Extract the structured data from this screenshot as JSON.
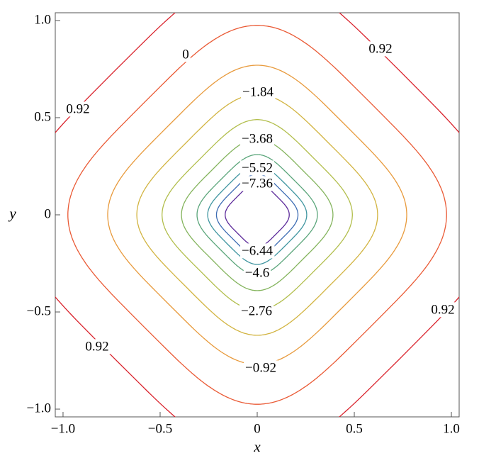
{
  "chart_data": {
    "type": "contour",
    "xlabel": "x",
    "ylabel": "y",
    "xlim": [
      -1.04,
      1.04
    ],
    "ylim": [
      -1.04,
      1.04
    ],
    "xticks": [
      {
        "value": -1,
        "label": "−1.0"
      },
      {
        "value": -0.5,
        "label": "−0.5"
      },
      0,
      0.5,
      {
        "value": 1,
        "label": "1.0"
      }
    ],
    "yticks": [
      {
        "value": -1,
        "label": "−1.0"
      },
      {
        "value": -0.5,
        "label": "−0.5"
      },
      0,
      0.5,
      {
        "value": 1,
        "label": "1.0"
      }
    ],
    "levels": [
      0.92,
      0,
      -0.92,
      -1.84,
      -2.76,
      -3.68,
      -4.6,
      -5.52,
      -6.44,
      -7.36
    ],
    "value_labels": [
      "0.92",
      "0",
      "−0.92",
      "−1.84",
      "−2.76",
      "−3.68",
      "−4.6",
      "−5.52",
      "−6.44",
      "−7.36"
    ],
    "half_widths": [
      1.24,
      0.975,
      0.77,
      0.62,
      0.49,
      0.39,
      0.31,
      0.255,
      0.21,
      0.165
    ],
    "colors": [
      "#d9212b",
      "#ea5a35",
      "#e89a3c",
      "#d2b441",
      "#b2be4c",
      "#84b45d",
      "#5aa57a",
      "#3f95a0",
      "#3d6cb3",
      "#5c2a9a"
    ]
  }
}
